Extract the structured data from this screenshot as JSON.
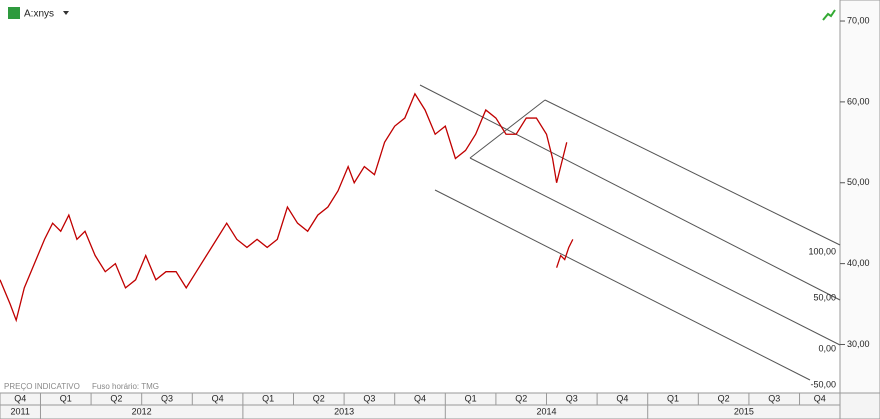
{
  "chart_data": {
    "type": "line",
    "series": [
      {
        "name": "A:xnys",
        "color": "#c00000",
        "x": [
          2011.8,
          2011.85,
          2011.88,
          2011.92,
          2011.97,
          2012.02,
          2012.06,
          2012.1,
          2012.14,
          2012.18,
          2012.22,
          2012.27,
          2012.32,
          2012.37,
          2012.42,
          2012.47,
          2012.52,
          2012.57,
          2012.62,
          2012.67,
          2012.72,
          2012.77,
          2012.82,
          2012.87,
          2012.92,
          2012.97,
          2013.02,
          2013.07,
          2013.12,
          2013.17,
          2013.22,
          2013.27,
          2013.32,
          2013.37,
          2013.42,
          2013.47,
          2013.52,
          2013.55,
          2013.6,
          2013.65,
          2013.7,
          2013.75,
          2013.8,
          2013.85,
          2013.9,
          2013.95,
          2014.0,
          2014.05,
          2014.1,
          2014.15,
          2014.2,
          2014.25,
          2014.3,
          2014.35,
          2014.4,
          2014.45,
          2014.5,
          2014.53,
          2014.55,
          2014.58,
          2014.6
        ],
        "values": [
          38,
          35,
          33,
          37,
          40,
          43,
          45,
          44,
          46,
          43,
          44,
          41,
          39,
          40,
          37,
          38,
          41,
          38,
          39,
          39,
          37,
          39,
          41,
          43,
          45,
          43,
          42,
          43,
          42,
          43,
          47,
          45,
          44,
          46,
          47,
          49,
          52,
          50,
          52,
          51,
          55,
          57,
          58,
          61,
          59,
          56,
          57,
          53,
          54,
          56,
          59,
          58,
          56,
          56,
          58,
          58,
          56,
          53,
          50,
          53,
          55
        ]
      },
      {
        "color": "#c00000",
        "x": [
          2014.55,
          2014.57,
          2014.59,
          2014.61,
          2014.63
        ],
        "values": [
          39.5,
          41,
          40.5,
          42,
          43
        ]
      }
    ],
    "xlim": [
      2011.8,
      2015.95
    ],
    "ylim": [
      72.6,
      24
    ],
    "yticks": [
      {
        "value": 70,
        "label": "70,00"
      },
      {
        "value": 60,
        "label": "60,00"
      },
      {
        "value": 50,
        "label": "50,00"
      },
      {
        "value": 40,
        "label": "40,00"
      },
      {
        "value": 30,
        "label": "30,00"
      }
    ],
    "quarters": [
      "Q4",
      "Q1",
      "Q2",
      "Q3",
      "Q4",
      "Q1",
      "Q2",
      "Q3",
      "Q4",
      "Q1",
      "Q2",
      "Q3",
      "Q4",
      "Q1",
      "Q2",
      "Q3",
      "Q4"
    ],
    "years": [
      "2011",
      "2012",
      "2013",
      "2014",
      "2015"
    ],
    "annotations": [
      "100,00",
      "50,00",
      "0,00",
      "-50,00"
    ],
    "footer": [
      "PREÇO INDICATIVO",
      "Fuso horário: TMG"
    ]
  }
}
